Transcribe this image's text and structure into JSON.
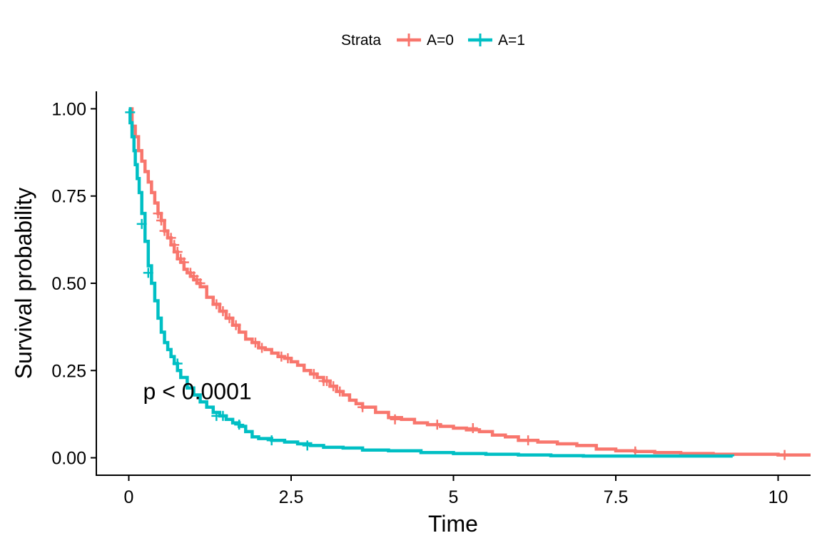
{
  "chart_data": {
    "type": "line",
    "subtype": "kaplan-meier step survival curve",
    "xlabel": "Time",
    "ylabel": "Survival probability",
    "xlim": [
      -0.5,
      10.5
    ],
    "ylim": [
      -0.05,
      1.05
    ],
    "x_ticks": [
      0,
      2.5,
      5,
      7.5,
      10
    ],
    "x_tick_labels": [
      "0",
      "2.5",
      "5",
      "7.5",
      "10"
    ],
    "y_ticks": [
      0,
      0.25,
      0.5,
      0.75,
      1.0
    ],
    "y_tick_labels": [
      "0.00",
      "0.25",
      "0.50",
      "0.75",
      "1.00"
    ],
    "grid": false,
    "legend": {
      "title": "Strata",
      "position": "top",
      "entries": [
        "A=0",
        "A=1"
      ]
    },
    "annotation": "p < 0.0001",
    "annotation_at": [
      0.22,
      0.19
    ],
    "series": [
      {
        "name": "A=0",
        "color": "#F8766D",
        "x": [
          0,
          0.05,
          0.1,
          0.15,
          0.2,
          0.25,
          0.3,
          0.35,
          0.4,
          0.45,
          0.5,
          0.55,
          0.6,
          0.65,
          0.7,
          0.75,
          0.8,
          0.85,
          0.9,
          0.95,
          1.0,
          1.05,
          1.1,
          1.2,
          1.3,
          1.4,
          1.5,
          1.6,
          1.7,
          1.8,
          1.9,
          2.0,
          2.1,
          2.2,
          2.3,
          2.4,
          2.5,
          2.6,
          2.7,
          2.8,
          2.9,
          3.0,
          3.1,
          3.2,
          3.3,
          3.4,
          3.5,
          3.6,
          3.8,
          4.0,
          4.2,
          4.4,
          4.6,
          4.8,
          5.0,
          5.2,
          5.4,
          5.6,
          5.8,
          6.0,
          6.3,
          6.6,
          6.9,
          7.2,
          7.5,
          7.8,
          8.1,
          8.5,
          9.0,
          9.5,
          10.0,
          10.5
        ],
        "y": [
          1.0,
          0.95,
          0.92,
          0.88,
          0.85,
          0.82,
          0.79,
          0.76,
          0.73,
          0.7,
          0.68,
          0.65,
          0.63,
          0.61,
          0.59,
          0.57,
          0.56,
          0.54,
          0.53,
          0.52,
          0.51,
          0.5,
          0.49,
          0.46,
          0.44,
          0.42,
          0.4,
          0.38,
          0.36,
          0.34,
          0.33,
          0.315,
          0.31,
          0.3,
          0.29,
          0.285,
          0.275,
          0.265,
          0.25,
          0.24,
          0.23,
          0.22,
          0.205,
          0.19,
          0.18,
          0.165,
          0.155,
          0.145,
          0.13,
          0.115,
          0.11,
          0.1,
          0.095,
          0.09,
          0.085,
          0.08,
          0.075,
          0.065,
          0.06,
          0.05,
          0.045,
          0.04,
          0.035,
          0.025,
          0.02,
          0.018,
          0.015,
          0.012,
          0.01,
          0.01,
          0.008,
          0.008
        ],
        "censor_x": [
          0.45,
          0.5,
          0.55,
          0.65,
          0.7,
          0.75,
          0.8,
          0.85,
          0.95,
          1.0,
          1.05,
          1.1,
          1.35,
          1.45,
          1.55,
          1.65,
          1.95,
          2.05,
          2.35,
          2.45,
          2.85,
          3.0,
          3.05,
          3.15,
          3.25,
          3.6,
          4.1,
          4.75,
          5.3,
          6.15,
          7.8,
          10.1
        ],
        "censor_y": [
          0.7,
          0.68,
          0.65,
          0.63,
          0.61,
          0.59,
          0.57,
          0.56,
          0.53,
          0.52,
          0.51,
          0.5,
          0.44,
          0.42,
          0.4,
          0.38,
          0.33,
          0.315,
          0.29,
          0.285,
          0.24,
          0.22,
          0.22,
          0.205,
          0.19,
          0.145,
          0.11,
          0.095,
          0.085,
          0.05,
          0.018,
          0.008
        ]
      },
      {
        "name": "A=1",
        "color": "#00BFC4",
        "x": [
          0,
          0.02,
          0.05,
          0.08,
          0.1,
          0.13,
          0.16,
          0.2,
          0.25,
          0.3,
          0.35,
          0.4,
          0.45,
          0.5,
          0.55,
          0.6,
          0.65,
          0.7,
          0.75,
          0.8,
          0.9,
          1.0,
          1.1,
          1.2,
          1.3,
          1.4,
          1.5,
          1.6,
          1.7,
          1.8,
          1.9,
          2.0,
          2.2,
          2.4,
          2.6,
          2.8,
          3.0,
          3.3,
          3.6,
          4.0,
          4.5,
          5.0,
          5.5,
          6.0,
          6.5,
          7.0,
          8.0,
          9.3
        ],
        "y": [
          1.0,
          0.96,
          0.92,
          0.88,
          0.84,
          0.8,
          0.76,
          0.7,
          0.62,
          0.55,
          0.5,
          0.45,
          0.4,
          0.36,
          0.33,
          0.31,
          0.29,
          0.27,
          0.25,
          0.23,
          0.2,
          0.18,
          0.16,
          0.145,
          0.13,
          0.12,
          0.11,
          0.1,
          0.09,
          0.075,
          0.06,
          0.055,
          0.05,
          0.045,
          0.04,
          0.035,
          0.03,
          0.028,
          0.022,
          0.02,
          0.015,
          0.012,
          0.01,
          0.008,
          0.006,
          0.005,
          0.005,
          0.004
        ],
        "censor_x": [
          0.02,
          0.2,
          0.3,
          0.75,
          1.35,
          1.45,
          1.7,
          2.2,
          2.75
        ],
        "censor_y": [
          0.99,
          0.67,
          0.53,
          0.27,
          0.12,
          0.12,
          0.095,
          0.05,
          0.035
        ]
      }
    ]
  }
}
